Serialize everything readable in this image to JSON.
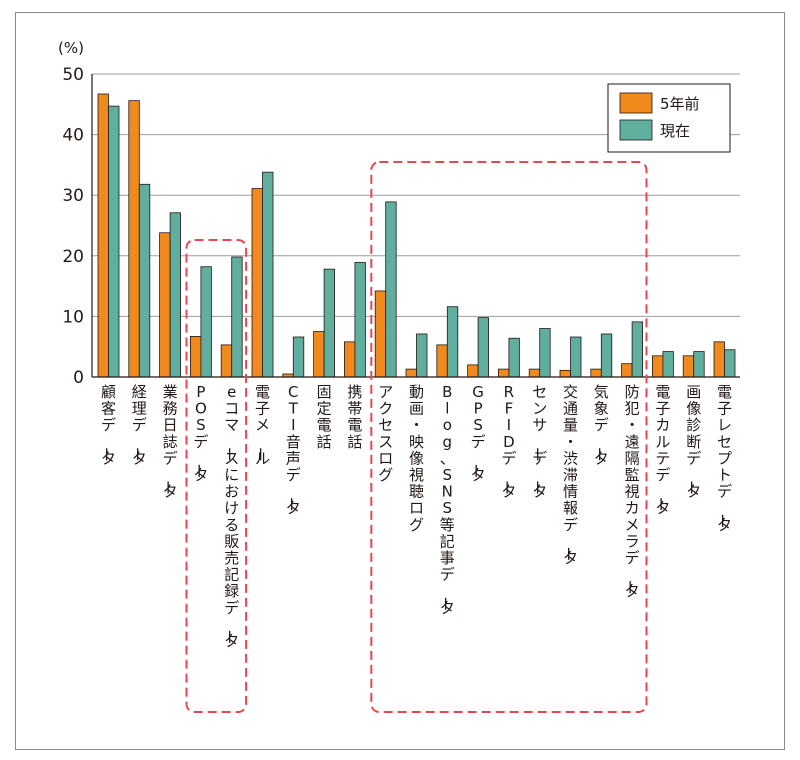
{
  "chart_data": {
    "type": "bar",
    "yunit": "(%)",
    "ylim": [
      0,
      50
    ],
    "yticks": [
      0,
      10,
      20,
      30,
      40,
      50
    ],
    "grid": true,
    "legend_position": "top-right",
    "categories": [
      "顧客データ",
      "経理データ",
      "業務日誌データ",
      "POSデータ",
      "eコマースにおける販売記録データ",
      "電子メール",
      "CTI音声データ",
      "固定電話",
      "携帯電話",
      "アクセスログ",
      "動画・映像視聴ログ",
      "Blog、SNS等記事データ",
      "GPSデータ",
      "RFIDデータ",
      "センサーデータ",
      "交通量・渋滞情報データ",
      "気象データ",
      "防犯・遠隔監視カメラデータ",
      "電子カルテデータ",
      "画像診断データ",
      "電子レセプトデータ"
    ],
    "series": [
      {
        "name": "5年前",
        "color": "#f08a1c",
        "values": [
          46.7,
          45.6,
          23.8,
          6.7,
          5.3,
          31.1,
          0.5,
          7.5,
          5.8,
          14.2,
          1.3,
          5.3,
          2.0,
          1.3,
          1.3,
          1.1,
          1.3,
          2.2,
          3.5,
          3.5,
          5.8
        ]
      },
      {
        "name": "現在",
        "color": "#5fae9e",
        "values": [
          44.7,
          31.8,
          27.1,
          18.2,
          19.8,
          33.8,
          6.6,
          17.8,
          18.9,
          28.9,
          7.1,
          11.6,
          9.8,
          6.4,
          8.0,
          6.6,
          7.1,
          9.1,
          4.2,
          4.2,
          4.5
        ]
      }
    ],
    "highlight_groups": [
      {
        "categories": [
          "POSデータ",
          "eコマースにおける販売記録データ"
        ],
        "style": "dashed red box"
      },
      {
        "categories": [
          "アクセスログ",
          "動画・映像視聴ログ",
          "Blog、SNS等記事データ",
          "GPSデータ",
          "RFIDデータ",
          "センサーデータ",
          "交通量・渋滞情報データ",
          "気象データ",
          "防犯・遠隔監視カメラデータ"
        ],
        "style": "dashed red box"
      }
    ]
  }
}
